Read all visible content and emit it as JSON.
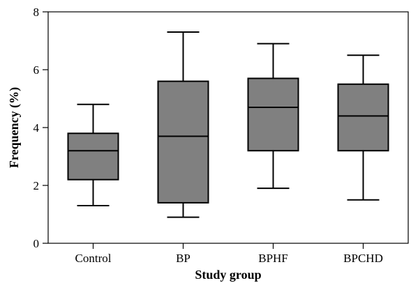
{
  "chart_data": {
    "type": "box",
    "xlabel": "Study group",
    "ylabel": "Frequency (%)",
    "ylim": [
      0,
      8
    ],
    "yticks": [
      0,
      2,
      4,
      6,
      8
    ],
    "grid": false,
    "legend": "none",
    "box_color": "#808080",
    "categories": [
      "Control",
      "BP",
      "BPHF",
      "BPCHD"
    ],
    "boxes": [
      {
        "category": "Control",
        "whisker_low": 1.3,
        "q1": 2.2,
        "median": 3.2,
        "q3": 3.8,
        "whisker_high": 4.8
      },
      {
        "category": "BP",
        "whisker_low": 0.9,
        "q1": 1.4,
        "median": 3.7,
        "q3": 5.6,
        "whisker_high": 7.3
      },
      {
        "category": "BPHF",
        "whisker_low": 1.9,
        "q1": 3.2,
        "median": 4.7,
        "q3": 5.7,
        "whisker_high": 6.9
      },
      {
        "category": "BPCHD",
        "whisker_low": 1.5,
        "q1": 3.2,
        "median": 4.4,
        "q3": 5.5,
        "whisker_high": 6.5
      }
    ]
  }
}
